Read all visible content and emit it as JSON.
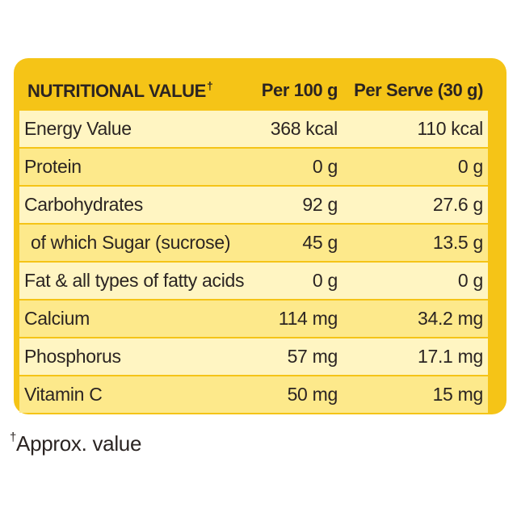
{
  "header": {
    "col_name": "NUTRITIONAL VALUE",
    "col_name_mark": "†",
    "col_per100": "Per 100 g",
    "col_serve": "Per Serve (30 g)"
  },
  "rows": [
    {
      "name": "Energy Value",
      "per100": "368 kcal",
      "serve": "110 kcal"
    },
    {
      "name": "Protein",
      "per100": "0 g",
      "serve": "0 g"
    },
    {
      "name": "Carbohydrates",
      "per100": "92 g",
      "serve": "27.6 g"
    },
    {
      "name": "of which Sugar (sucrose)",
      "per100": "45 g",
      "serve": "13.5 g"
    },
    {
      "name": "Fat & all types of fatty acids",
      "per100": "0 g",
      "serve": "0 g"
    },
    {
      "name": "Calcium",
      "per100": "114 mg",
      "serve": "34.2 mg"
    },
    {
      "name": "Phosphorus",
      "per100": "57 mg",
      "serve": "17.1 mg"
    },
    {
      "name": "Vitamin C",
      "per100": "50 mg",
      "serve": "15 mg"
    }
  ],
  "footnote": {
    "mark": "†",
    "text": "Approx. value"
  },
  "colors": {
    "panel": "#f5c417",
    "row_light": "#fff5c2",
    "row_dark": "#fde98b",
    "text": "#2b2422"
  }
}
